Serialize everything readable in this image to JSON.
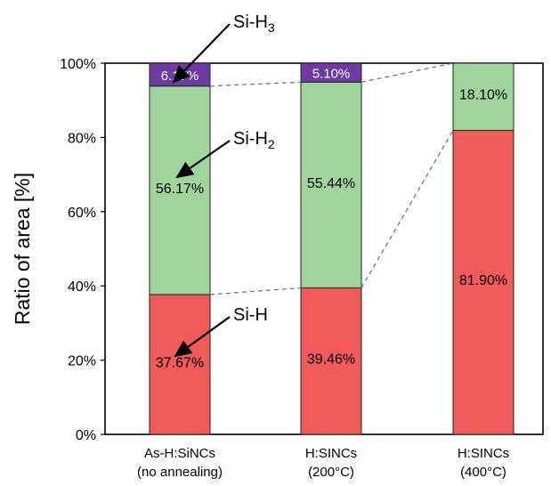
{
  "chart_data": {
    "type": "bar",
    "stacked": true,
    "ylabel": "Ratio of area [%]",
    "ylim": [
      0,
      100
    ],
    "ytick_step": 20,
    "grid": false,
    "categories": [
      [
        "As-H:SiNCs",
        "(no annealing)"
      ],
      [
        "H:SINCs",
        "(200°C)"
      ],
      [
        "H:SINCs",
        "(400°C)"
      ]
    ],
    "series": [
      {
        "name": "Si-H",
        "color": "#f05a5a",
        "values": [
          37.67,
          39.46,
          81.9
        ],
        "labels": [
          "37.67%",
          "39.46%",
          "81.90%"
        ]
      },
      {
        "name": "Si-H2",
        "color": "#9fd49b",
        "values": [
          56.17,
          55.44,
          18.1
        ],
        "labels": [
          "56.17%",
          "55.44%",
          "18.10%"
        ]
      },
      {
        "name": "Si-H3",
        "color": "#6d3ba3",
        "values": [
          6.17,
          5.1,
          0
        ],
        "labels": [
          "6.17%",
          "5.10%",
          ""
        ]
      }
    ],
    "annotations": [
      {
        "base": "Si-H",
        "sub": "3",
        "series": 2,
        "bar": 0
      },
      {
        "base": "Si-H",
        "sub": "2",
        "series": 1,
        "bar": 0
      },
      {
        "base": "Si-H",
        "sub": "",
        "series": 0,
        "bar": 0
      }
    ],
    "connectors": "dashed"
  }
}
